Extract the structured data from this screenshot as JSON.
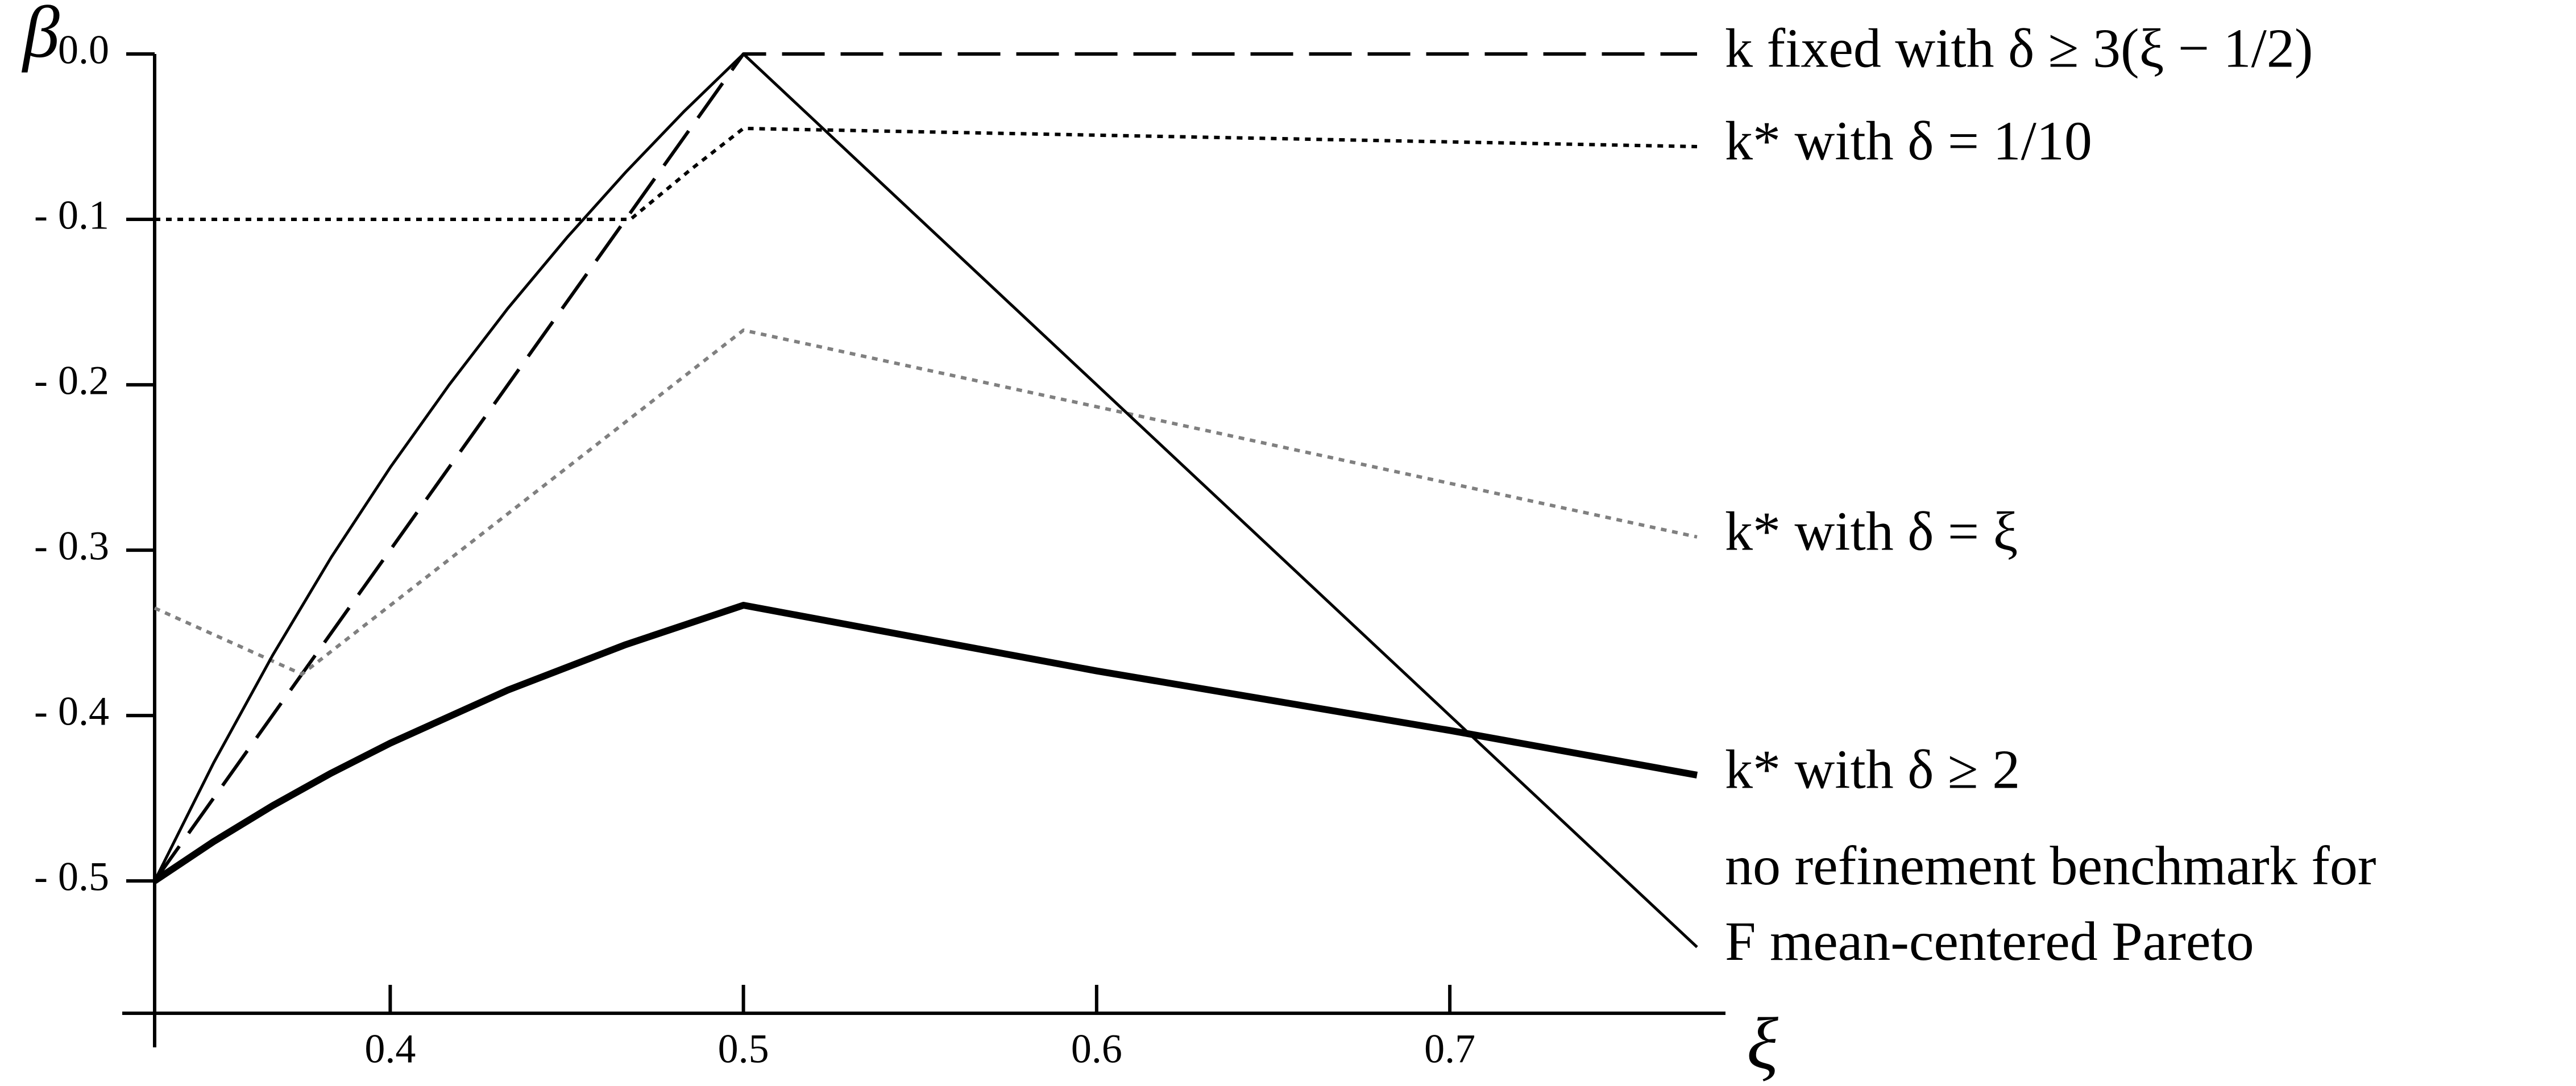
{
  "chart_data": {
    "type": "line",
    "x_label": "ξ",
    "y_label": "β",
    "xlim": [
      0.3333,
      0.77
    ],
    "ylim": [
      -0.58,
      0
    ],
    "xticks": [
      0.4,
      0.5,
      0.6,
      0.7
    ],
    "yticks": [
      {
        "value": 0,
        "label": "0.0"
      },
      {
        "value": -0.1,
        "label": "- 0.1"
      },
      {
        "value": -0.2,
        "label": "- 0.2"
      },
      {
        "value": -0.3,
        "label": "- 0.3"
      },
      {
        "value": -0.4,
        "label": "- 0.4"
      },
      {
        "value": -0.5,
        "label": "- 0.5"
      }
    ],
    "series": [
      {
        "name": [
          "k fixed with δ ≥ 3(ξ − 1/2)"
        ],
        "color": "#000000",
        "style": "longdash",
        "width": 6,
        "x": [
          0.3333,
          0.5,
          0.77
        ],
        "values": [
          -0.5,
          0,
          0
        ]
      },
      {
        "name": [
          "k* with δ = 1/10"
        ],
        "color": "#000000",
        "style": "dotted",
        "width": 6,
        "x": [
          0.3333,
          0.468,
          0.485,
          0.5,
          0.77
        ],
        "values": [
          -0.1,
          -0.1,
          -0.07,
          -0.045,
          -0.056
        ]
      },
      {
        "name": [
          "k* with δ = ξ"
        ],
        "color": "#808080",
        "style": "dotted",
        "width": 6,
        "x": [
          0.3333,
          0.375,
          0.5,
          0.77
        ],
        "values": [
          -0.335,
          -0.375,
          -0.167,
          -0.292
        ]
      },
      {
        "name": [
          "k* with δ ≥ 2"
        ],
        "color": "#000000",
        "style": "solid",
        "width": 12,
        "x": [
          0.3333,
          0.35,
          0.3667,
          0.3833,
          0.4,
          0.4333,
          0.4667,
          0.5,
          0.6,
          0.7,
          0.77
        ],
        "values": [
          -0.5,
          -0.4762,
          -0.4545,
          -0.4348,
          -0.4167,
          -0.3846,
          -0.3571,
          -0.3333,
          -0.373,
          -0.409,
          -0.436
        ]
      },
      {
        "name": [
          "no refinement benchmark for",
          "F mean-centered Pareto"
        ],
        "color": "#000000",
        "style": "solid",
        "width": 5,
        "x": [
          0.3333,
          0.35,
          0.3667,
          0.3833,
          0.4,
          0.4167,
          0.4333,
          0.45,
          0.4667,
          0.4833,
          0.5,
          0.77
        ],
        "values": [
          -0.5,
          -0.4286,
          -0.3636,
          -0.3043,
          -0.25,
          -0.2,
          -0.1538,
          -0.1111,
          -0.0714,
          -0.0345,
          0,
          -0.54
        ]
      }
    ]
  }
}
